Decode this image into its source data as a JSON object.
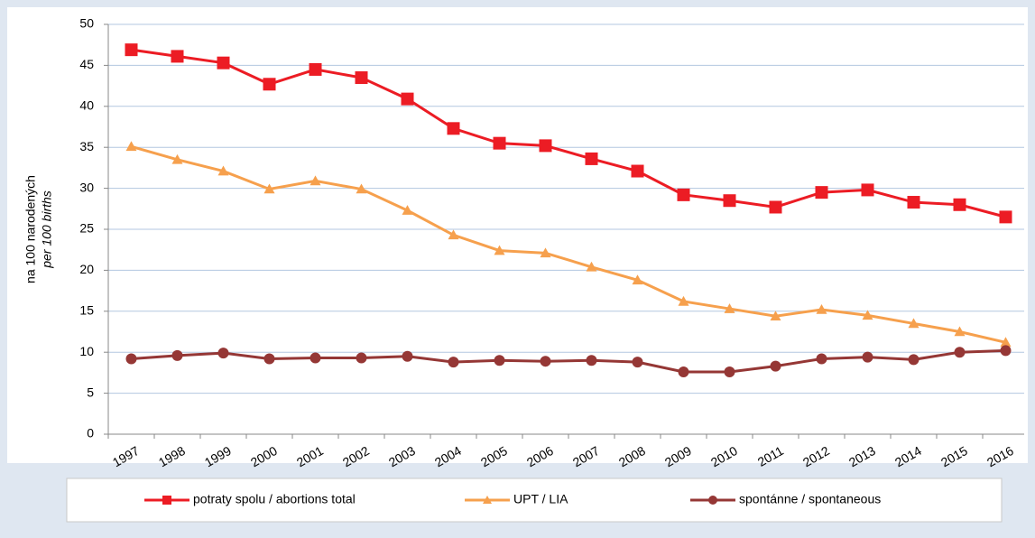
{
  "chart_data": {
    "type": "line",
    "y_label": "na 100 narodených",
    "y_label_2": "per 100 births",
    "categories": [
      "1997",
      "1998",
      "1999",
      "2000",
      "2001",
      "2002",
      "2003",
      "2004",
      "2005",
      "2006",
      "2007",
      "2008",
      "2009",
      "2010",
      "2011",
      "2012",
      "2013",
      "2014",
      "2015",
      "2016"
    ],
    "series": [
      {
        "name": "potraty spolu / abortions total",
        "color": "#ec1c24",
        "marker": "square",
        "values": [
          46.9,
          46.1,
          45.3,
          42.7,
          44.5,
          43.5,
          40.9,
          37.3,
          35.5,
          35.2,
          33.6,
          32.1,
          29.2,
          28.5,
          27.7,
          29.5,
          29.8,
          28.3,
          28.0,
          26.5
        ]
      },
      {
        "name": "UPT / LIA",
        "color": "#f6a04d",
        "marker": "triangle",
        "values": [
          35.1,
          33.5,
          32.1,
          29.9,
          30.9,
          29.9,
          27.3,
          24.3,
          22.4,
          22.1,
          20.4,
          18.8,
          16.2,
          15.3,
          14.4,
          15.2,
          14.5,
          13.5,
          12.5,
          11.2
        ]
      },
      {
        "name": "spontánne / spontaneous",
        "color": "#953735",
        "marker": "circle",
        "values": [
          9.2,
          9.6,
          9.9,
          9.2,
          9.3,
          9.3,
          9.5,
          8.8,
          9.0,
          8.9,
          9.0,
          8.8,
          7.6,
          7.6,
          8.3,
          9.2,
          9.4,
          9.1,
          10.0,
          10.2
        ]
      }
    ],
    "ylim": [
      0,
      50
    ],
    "yticks": [
      0,
      5,
      10,
      15,
      20,
      25,
      30,
      35,
      40,
      45,
      50
    ],
    "grid": true,
    "legend": "bottom"
  }
}
